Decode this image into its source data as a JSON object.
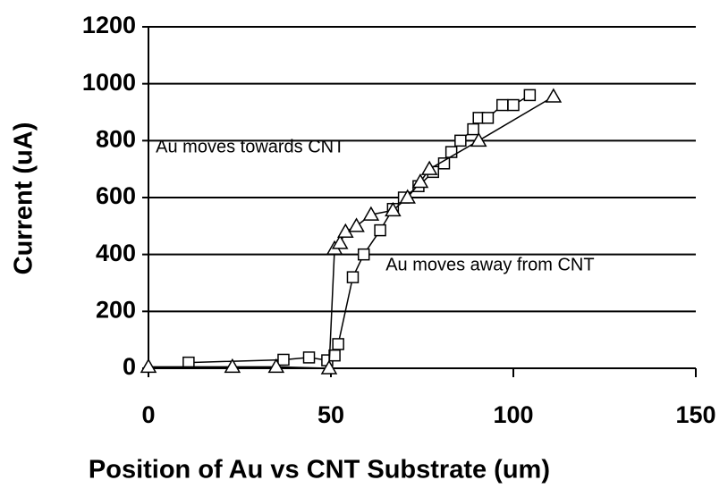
{
  "chart_data": {
    "type": "line",
    "xlabel": "Position of Au vs CNT Substrate (um)",
    "ylabel": "Current (uA)",
    "xlim": [
      0,
      150
    ],
    "xticks": [
      0,
      50,
      100,
      150
    ],
    "ylim": [
      0,
      1200
    ],
    "yticks": [
      0,
      200,
      400,
      600,
      800,
      1000,
      1200
    ],
    "grid": true,
    "annotations": [
      {
        "text": "Au moves towards CNT",
        "x": 2,
        "y": 775
      },
      {
        "text": "Au moves away from CNT",
        "x": 65,
        "y": 360
      }
    ],
    "series": [
      {
        "marker": "square",
        "color": "#000000",
        "x": [
          11,
          37,
          44,
          49,
          51,
          52,
          56,
          59,
          63.5,
          67,
          70,
          74,
          78,
          81,
          83,
          85.5,
          89,
          90.5,
          93,
          97,
          100,
          104.5
        ],
        "values": [
          20,
          30,
          38,
          28,
          45,
          85,
          320,
          400,
          485,
          560,
          600,
          640,
          690,
          720,
          760,
          800,
          840,
          880,
          880,
          925,
          925,
          960
        ]
      },
      {
        "marker": "triangle",
        "color": "#000000",
        "x": [
          0,
          23,
          35,
          49.5,
          51,
          52.5,
          54,
          57,
          61,
          67,
          71,
          74.5,
          77,
          90.5,
          111
        ],
        "values": [
          5,
          5,
          5,
          0,
          420,
          440,
          480,
          500,
          540,
          555,
          600,
          655,
          700,
          800,
          955
        ]
      }
    ]
  }
}
